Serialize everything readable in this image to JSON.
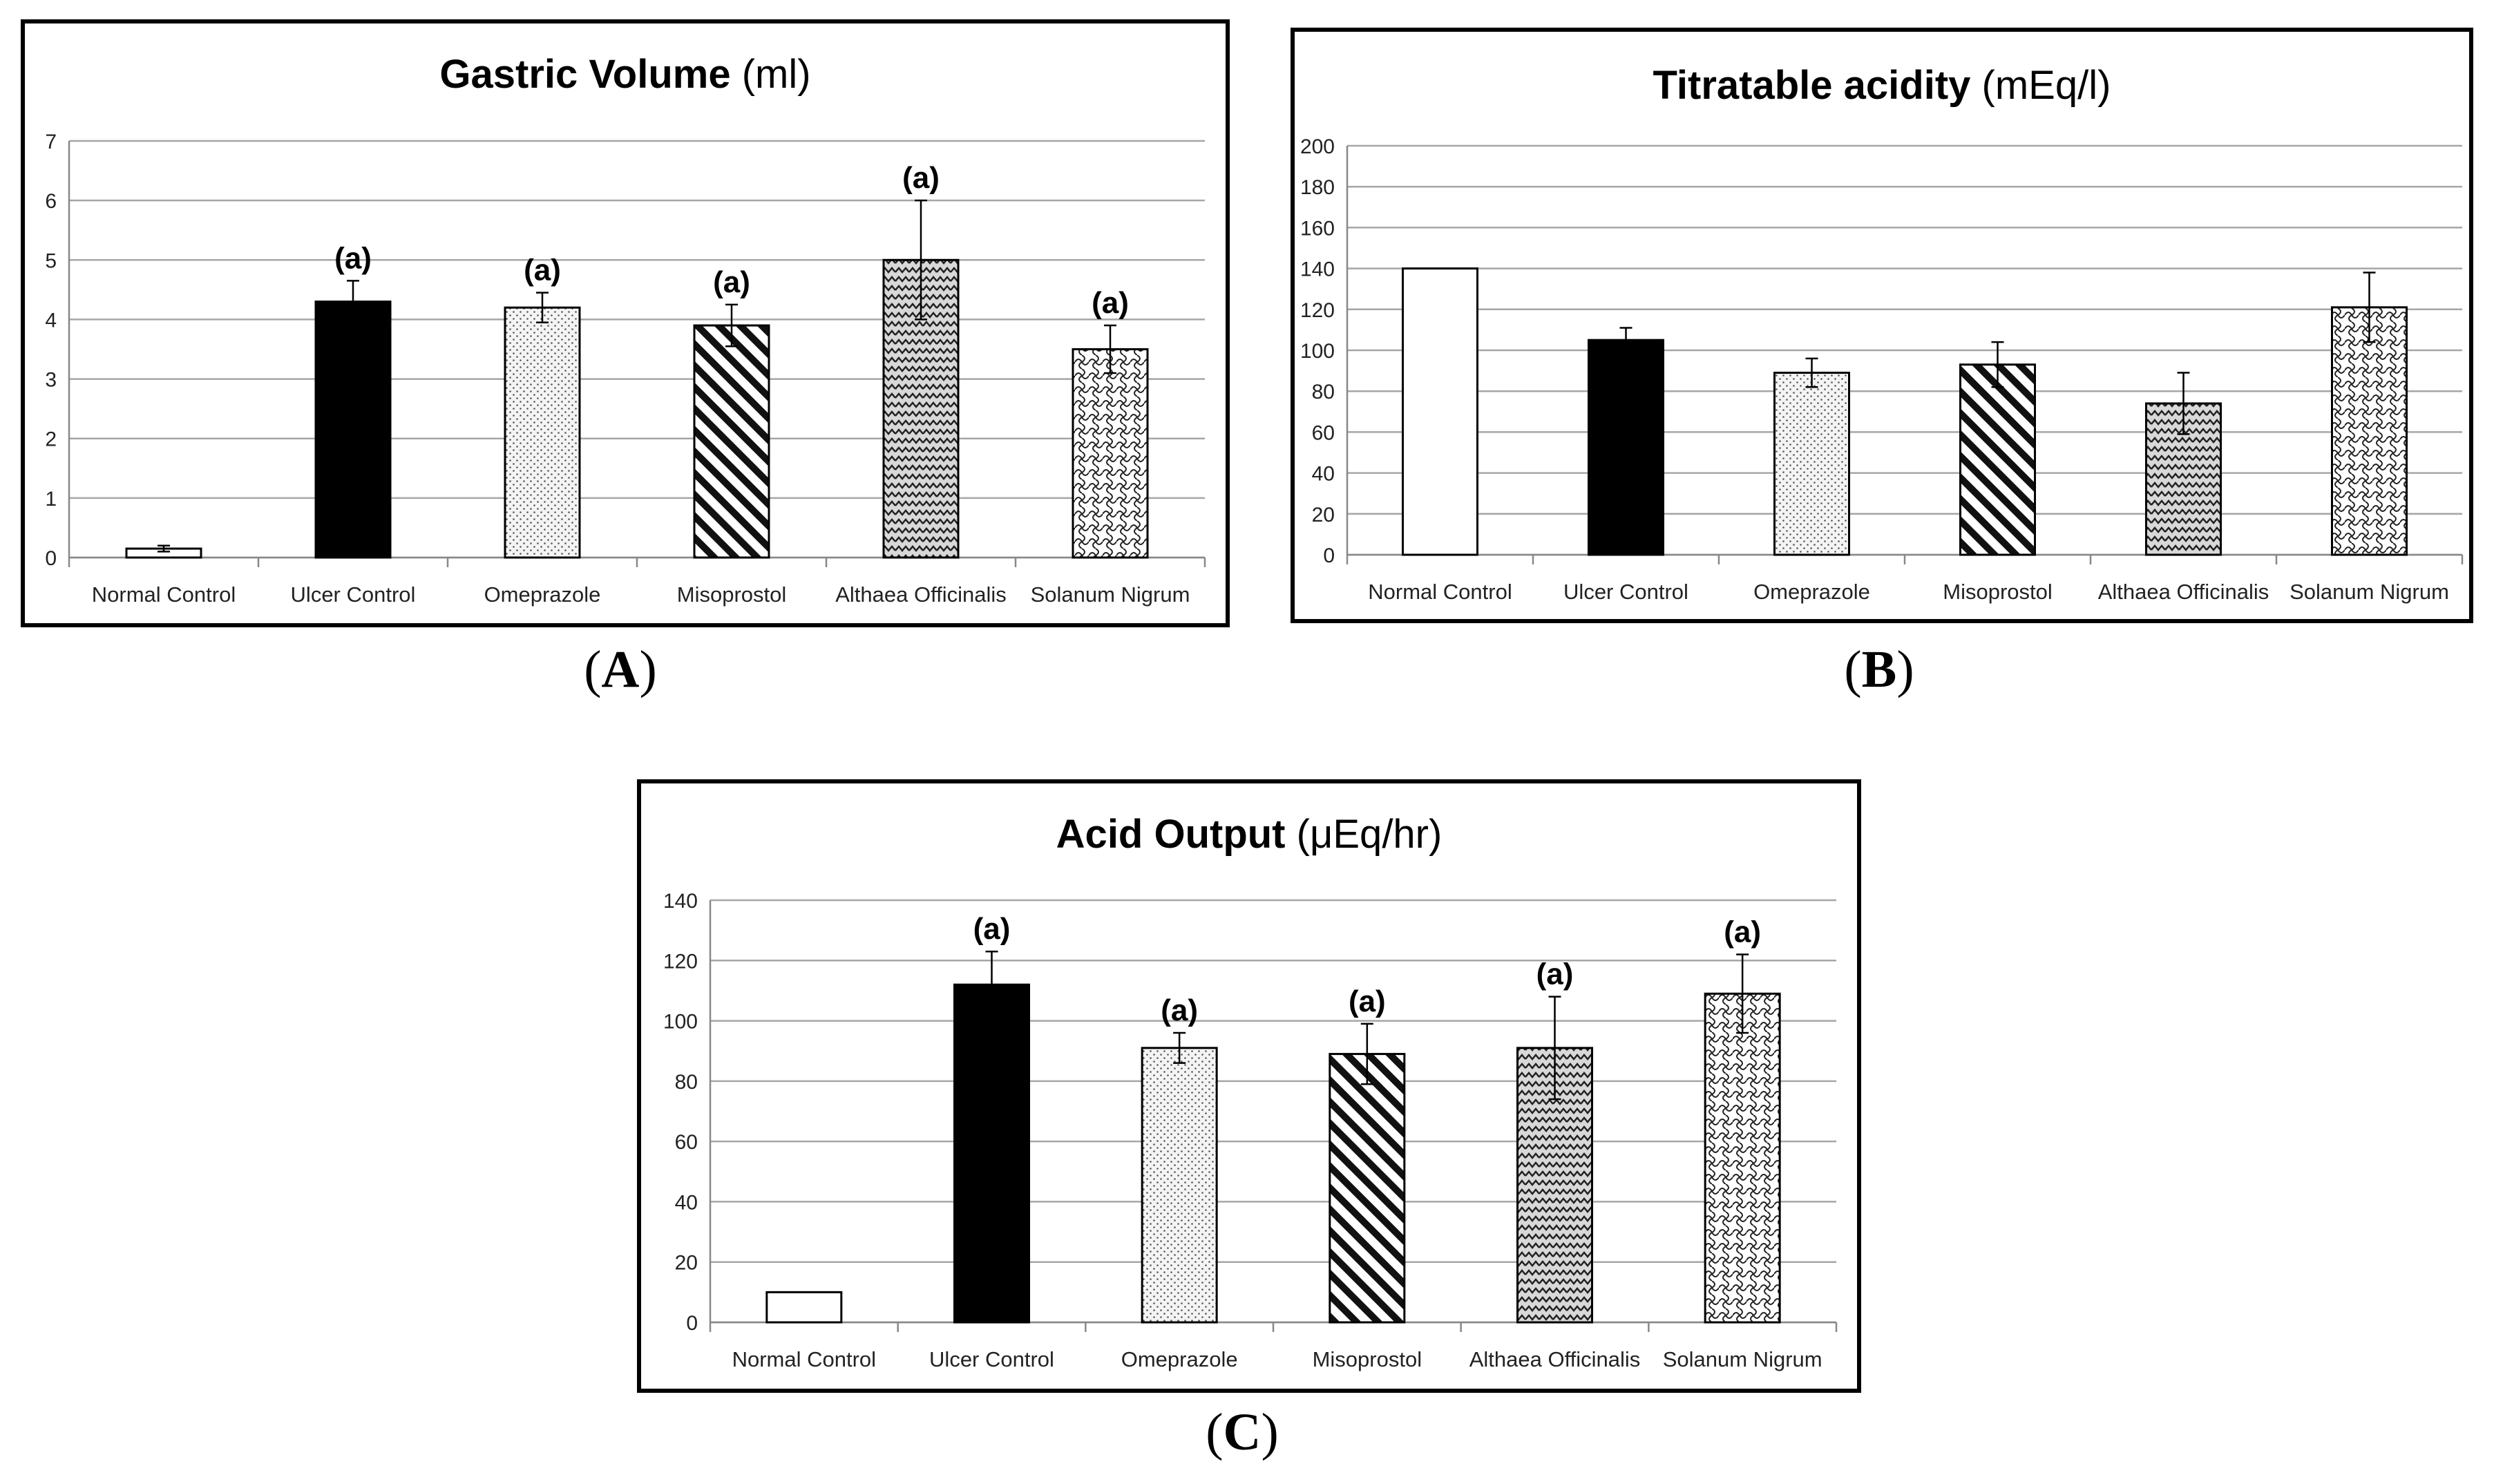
{
  "figure": {
    "panel_labels": [
      "A",
      "B",
      "C"
    ]
  },
  "chart_data": [
    {
      "type": "bar",
      "title": "Gastric Volume",
      "unit": "(ml)",
      "categories": [
        "Normal Control",
        "Ulcer Control",
        "Omeprazole",
        "Misoprostol",
        "Althaea Officinalis",
        "Solanum Nigrum"
      ],
      "series": [
        {
          "name": "Gastric Volume",
          "values": [
            0.15,
            4.3,
            4.2,
            3.9,
            5.0,
            3.5
          ],
          "errors": [
            0.05,
            0.35,
            0.25,
            0.35,
            1.0,
            0.4
          ]
        }
      ],
      "annotations": [
        "",
        "(a)",
        "(a)",
        "(a)",
        "(a)",
        "(a)"
      ],
      "ylim": [
        0,
        7
      ],
      "yticks": [
        0,
        1,
        2,
        3,
        4,
        5,
        6,
        7
      ],
      "grid": true,
      "xlabel": "",
      "ylabel": ""
    },
    {
      "type": "bar",
      "title": "Titratable acidity",
      "unit": "(mEq/l)",
      "categories": [
        "Normal Control",
        "Ulcer Control",
        "Omeprazole",
        "Misoprostol",
        "Althaea Officinalis",
        "Solanum Nigrum"
      ],
      "series": [
        {
          "name": "Titratable acidity",
          "values": [
            140,
            105,
            89,
            93,
            74,
            121
          ],
          "errors": [
            0,
            6,
            7,
            11,
            15,
            17
          ]
        }
      ],
      "annotations": [
        "",
        "",
        "",
        "",
        "",
        ""
      ],
      "ylim": [
        0,
        200
      ],
      "yticks": [
        0,
        20,
        40,
        60,
        80,
        100,
        120,
        140,
        160,
        180,
        200
      ],
      "grid": true,
      "xlabel": "",
      "ylabel": ""
    },
    {
      "type": "bar",
      "title": "Acid Output",
      "unit": "(μEq/hr)",
      "categories": [
        "Normal Control",
        "Ulcer Control",
        "Omeprazole",
        "Misoprostol",
        "Althaea Officinalis",
        "Solanum Nigrum"
      ],
      "series": [
        {
          "name": "Acid Output",
          "values": [
            10,
            112,
            91,
            89,
            91,
            109
          ],
          "errors": [
            0,
            11,
            5,
            10,
            17,
            13
          ]
        }
      ],
      "annotations": [
        "",
        "(a)",
        "(a)",
        "(a)",
        "(a)",
        "(a)"
      ],
      "ylim": [
        0,
        140
      ],
      "yticks": [
        0,
        20,
        40,
        60,
        80,
        100,
        120,
        140
      ],
      "grid": true,
      "xlabel": "",
      "ylabel": ""
    }
  ]
}
